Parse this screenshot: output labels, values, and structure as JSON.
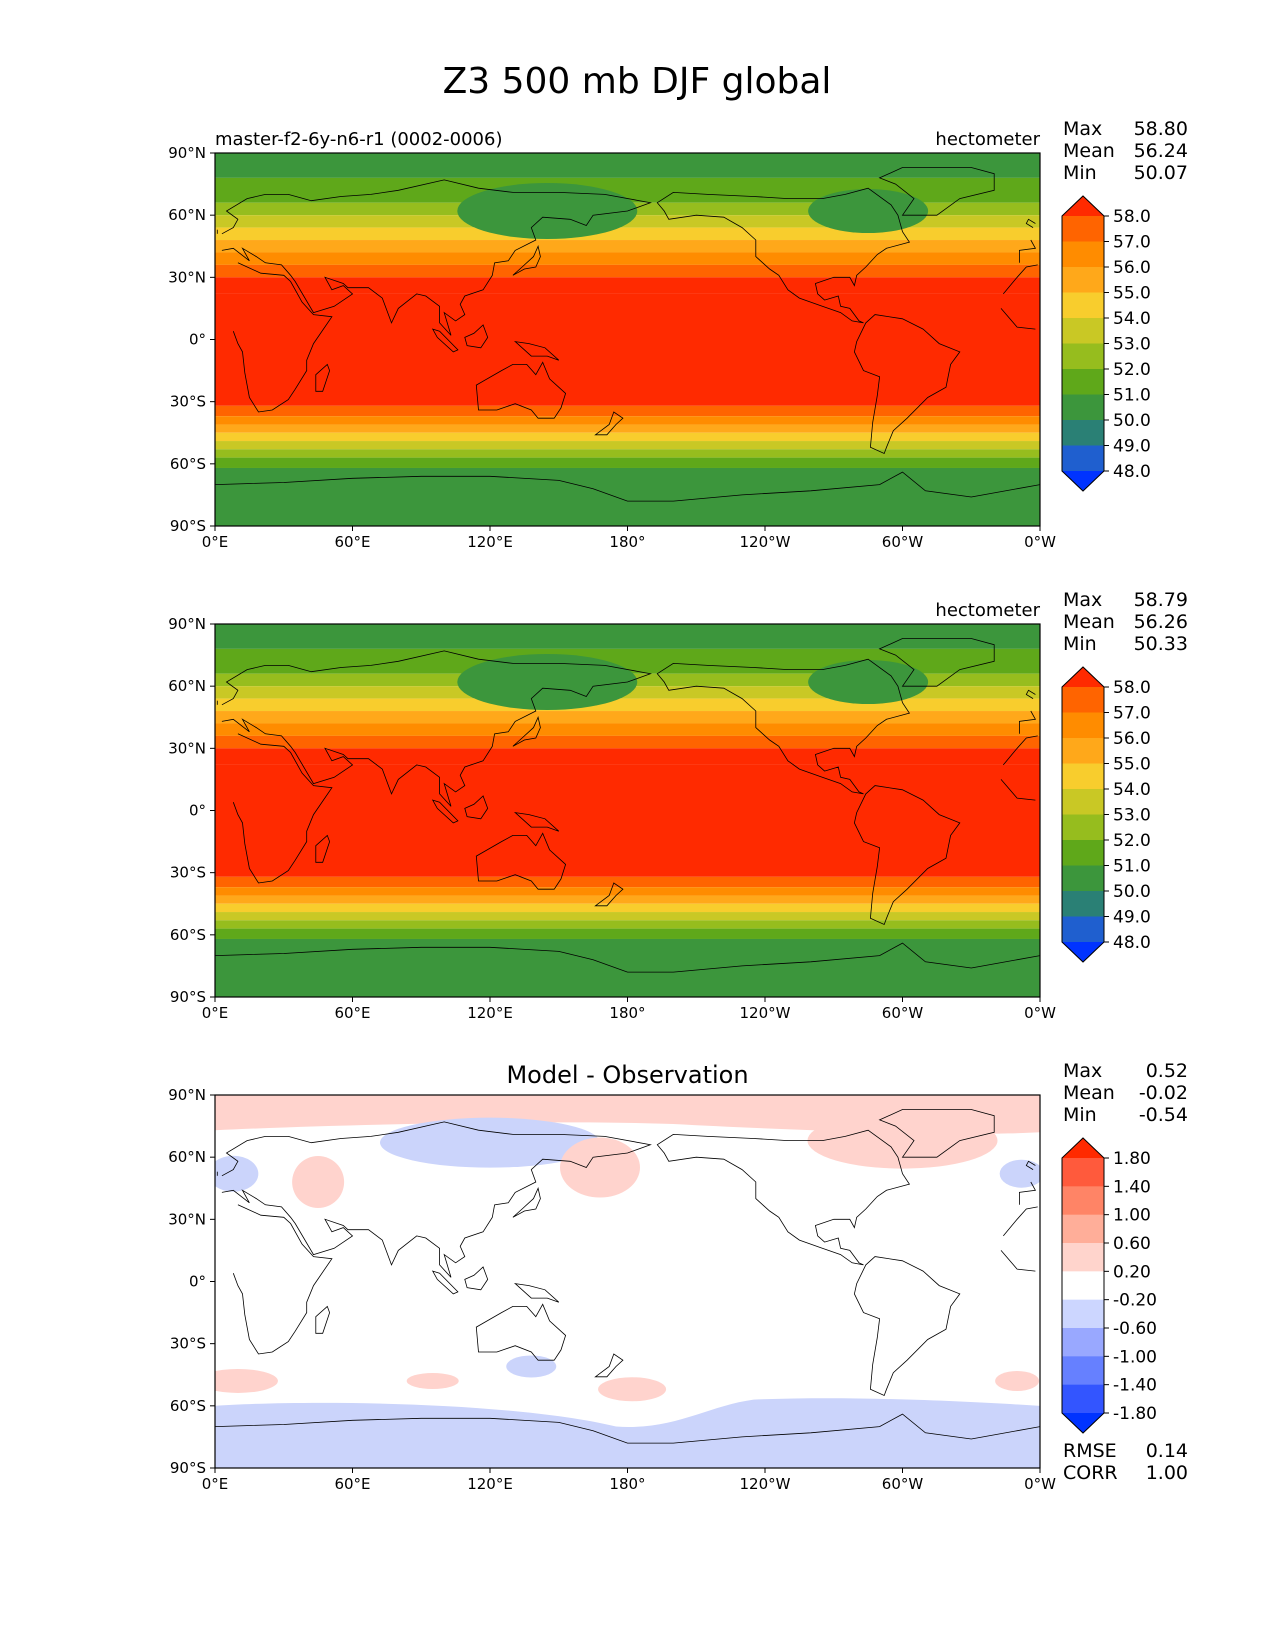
{
  "figure": {
    "title": "Z3 500 mb DJF global"
  },
  "chart_data": [
    {
      "type": "heatmap",
      "panel": "test",
      "left_label": "master-f2-6y-n6-r1 (0002-0006)",
      "units": "hectometer",
      "title": "",
      "x_ticks": [
        "0°E",
        "60°E",
        "120°E",
        "180°",
        "120°W",
        "60°W",
        "0°W"
      ],
      "y_ticks": [
        "90°N",
        "60°N",
        "30°N",
        "0°",
        "30°S",
        "60°S",
        "90°S"
      ],
      "xlim": [
        0,
        360
      ],
      "ylim": [
        -90,
        90
      ],
      "stats": [
        {
          "label": "Max",
          "value": "58.80"
        },
        {
          "label": "Mean",
          "value": "56.24"
        },
        {
          "label": "Min",
          "value": "50.07"
        }
      ],
      "colorbar": {
        "tick_labels": [
          "58.0",
          "57.0",
          "56.0",
          "55.0",
          "54.0",
          "53.0",
          "52.0",
          "51.0",
          "50.0",
          "49.0",
          "48.0"
        ],
        "colors": [
          "#ff2a00",
          "#ff6400",
          "#ff8c00",
          "#ffa81a",
          "#f8cd2d",
          "#c9c825",
          "#96bd1e",
          "#5fa81a",
          "#3c963c",
          "#2a8075",
          "#1f5fcf",
          "#0033ff"
        ],
        "extend": "both"
      },
      "bands": {
        "southern_edge_value": "51.0",
        "northern_edge_value": "51.0",
        "tropical_max": "58.0"
      }
    },
    {
      "type": "heatmap",
      "panel": "reference",
      "left_label": "",
      "units": "hectometer",
      "title": "",
      "x_ticks": [
        "0°E",
        "60°E",
        "120°E",
        "180°",
        "120°W",
        "60°W",
        "0°W"
      ],
      "y_ticks": [
        "90°N",
        "60°N",
        "30°N",
        "0°",
        "30°S",
        "60°S",
        "90°S"
      ],
      "xlim": [
        0,
        360
      ],
      "ylim": [
        -90,
        90
      ],
      "stats": [
        {
          "label": "Max",
          "value": "58.79"
        },
        {
          "label": "Mean",
          "value": "56.26"
        },
        {
          "label": "Min",
          "value": "50.33"
        }
      ],
      "colorbar": {
        "tick_labels": [
          "58.0",
          "57.0",
          "56.0",
          "55.0",
          "54.0",
          "53.0",
          "52.0",
          "51.0",
          "50.0",
          "49.0",
          "48.0"
        ],
        "colors": [
          "#ff2a00",
          "#ff6400",
          "#ff8c00",
          "#ffa81a",
          "#f8cd2d",
          "#c9c825",
          "#96bd1e",
          "#5fa81a",
          "#3c963c",
          "#2a8075",
          "#1f5fcf",
          "#0033ff"
        ],
        "extend": "both"
      }
    },
    {
      "type": "heatmap",
      "panel": "difference",
      "left_label": "",
      "units": "",
      "title": "Model - Observation",
      "x_ticks": [
        "0°E",
        "60°E",
        "120°E",
        "180°",
        "120°W",
        "60°W",
        "0°W"
      ],
      "y_ticks": [
        "90°N",
        "60°N",
        "30°N",
        "0°",
        "30°S",
        "60°S",
        "90°S"
      ],
      "xlim": [
        0,
        360
      ],
      "ylim": [
        -90,
        90
      ],
      "stats": [
        {
          "label": "Max",
          "value": "0.52"
        },
        {
          "label": "Mean",
          "value": "-0.02"
        },
        {
          "label": "Min",
          "value": "-0.54"
        }
      ],
      "bottom_stats": [
        {
          "label": "RMSE",
          "value": "0.14"
        },
        {
          "label": "CORR",
          "value": "1.00"
        }
      ],
      "colorbar": {
        "tick_labels": [
          "1.80",
          "1.40",
          "1.00",
          "0.60",
          "0.20",
          "-0.20",
          "-0.60",
          "-1.00",
          "-1.40",
          "-1.80"
        ],
        "colors": [
          "#ff2a00",
          "#ff5a3c",
          "#ff8466",
          "#ffae99",
          "#ffd4cc",
          "#ffffff",
          "#ccd6ff",
          "#99a8ff",
          "#6680ff",
          "#3355ff",
          "#0033ff"
        ],
        "extend": "both"
      }
    }
  ]
}
